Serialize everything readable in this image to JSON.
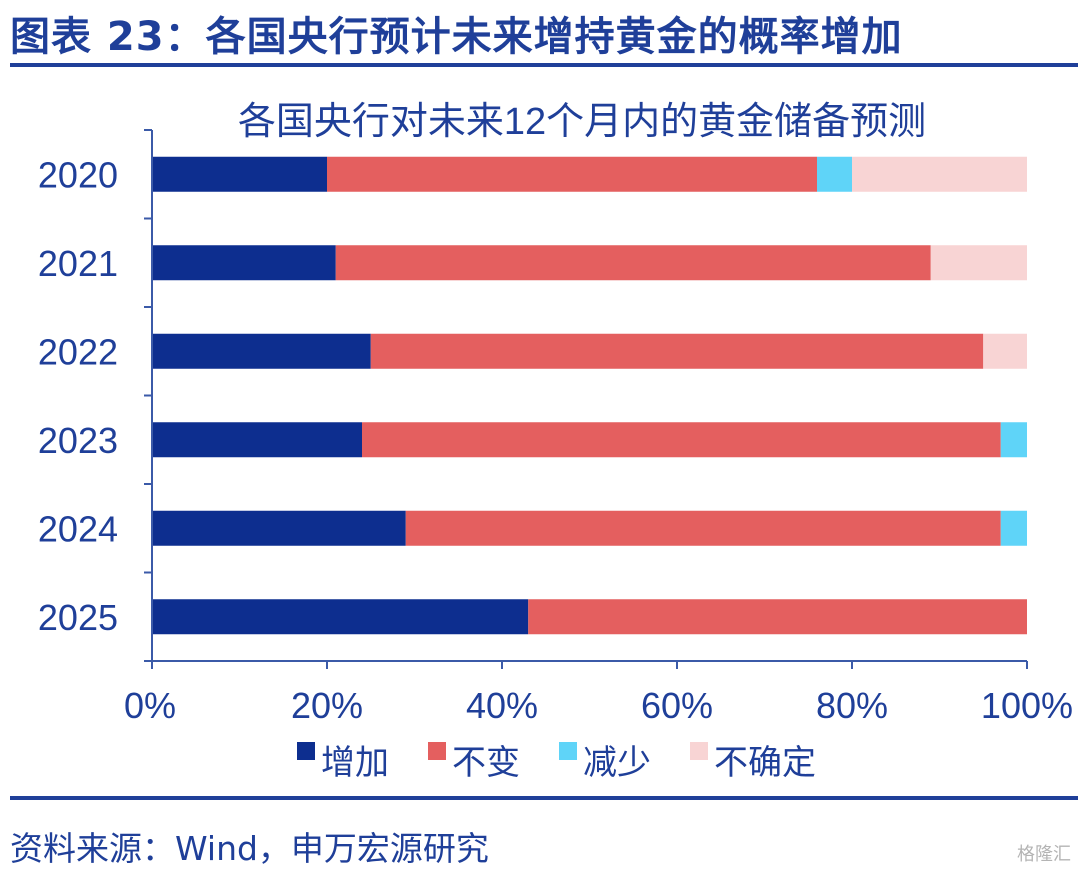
{
  "header": {
    "figure_title": "图表 23：各国央行预计未来增持黄金的概率增加"
  },
  "footer": {
    "source": "资料来源：Wind，申万宏源研究",
    "watermark": "格隆汇"
  },
  "colors": {
    "title_blue": "#1f3f99",
    "increase": "#0d2e8f",
    "unchanged": "#e45f5f",
    "decrease": "#5fd4f8",
    "uncertain": "#f8d4d4"
  },
  "chart_data": {
    "type": "bar",
    "orientation": "horizontal",
    "stacked": true,
    "title": "各国央行对未来12个月内的黄金储备预测",
    "categories": [
      "2020",
      "2021",
      "2022",
      "2023",
      "2024",
      "2025"
    ],
    "series": [
      {
        "name": "增加",
        "values": [
          20,
          21,
          25,
          24,
          29,
          43
        ]
      },
      {
        "name": "不变",
        "values": [
          56,
          68,
          70,
          73,
          68,
          57
        ]
      },
      {
        "name": "减少",
        "values": [
          4,
          0,
          0,
          3,
          3,
          0
        ]
      },
      {
        "name": "不确定",
        "values": [
          20,
          11,
          5,
          0,
          0,
          0
        ]
      }
    ],
    "xlim": [
      0,
      100
    ],
    "xticks": [
      "0%",
      "20%",
      "40%",
      "60%",
      "80%",
      "100%"
    ],
    "grid": false,
    "legend_position": "bottom"
  }
}
